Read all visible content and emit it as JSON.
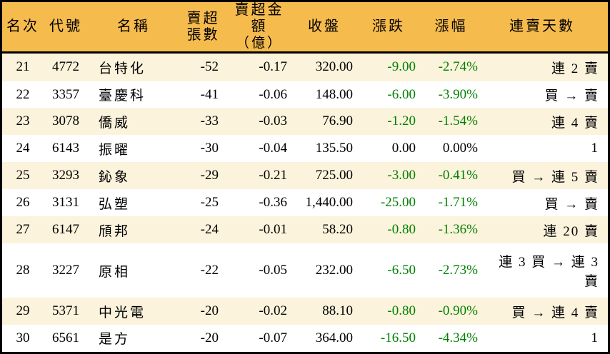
{
  "colors": {
    "header_bg": "#F6BB4D",
    "row_alt_bg": "#FCF3DC",
    "down_green": "#008000",
    "text": "#000000",
    "border": "#000000"
  },
  "chart_data": {
    "type": "table",
    "title": "",
    "columns": [
      {
        "label": "名次"
      },
      {
        "label": "代號"
      },
      {
        "label": "名稱"
      },
      {
        "label": "賣超張數"
      },
      {
        "label": "賣超金額",
        "label2": "（億）"
      },
      {
        "label": "收盤"
      },
      {
        "label": "漲跌"
      },
      {
        "label": "漲幅"
      },
      {
        "label": "連賣天數"
      }
    ],
    "rows": [
      {
        "rank": "21",
        "code": "4772",
        "name": "台特化",
        "sell_volume": "-52",
        "sell_amount": "-0.17",
        "close": "320.00",
        "change": "-9.00",
        "change_pct": "-2.74%",
        "streak": "連 2 賣",
        "change_color": "green"
      },
      {
        "rank": "22",
        "code": "3357",
        "name": "臺慶科",
        "sell_volume": "-41",
        "sell_amount": "-0.06",
        "close": "148.00",
        "change": "-6.00",
        "change_pct": "-3.90%",
        "streak": "買 → 賣",
        "change_color": "green"
      },
      {
        "rank": "23",
        "code": "3078",
        "name": "僑威",
        "sell_volume": "-33",
        "sell_amount": "-0.03",
        "close": "76.90",
        "change": "-1.20",
        "change_pct": "-1.54%",
        "streak": "連 4 賣",
        "change_color": "green"
      },
      {
        "rank": "24",
        "code": "6143",
        "name": "振曜",
        "sell_volume": "-30",
        "sell_amount": "-0.04",
        "close": "135.50",
        "change": "0.00",
        "change_pct": "0.00%",
        "streak": "1",
        "change_color": "black"
      },
      {
        "rank": "25",
        "code": "3293",
        "name": "鈊象",
        "sell_volume": "-29",
        "sell_amount": "-0.21",
        "close": "725.00",
        "change": "-3.00",
        "change_pct": "-0.41%",
        "streak": "買 → 連 5 賣",
        "change_color": "green"
      },
      {
        "rank": "26",
        "code": "3131",
        "name": "弘塑",
        "sell_volume": "-25",
        "sell_amount": "-0.36",
        "close": "1,440.00",
        "change": "-25.00",
        "change_pct": "-1.71%",
        "streak": "買 → 賣",
        "change_color": "green"
      },
      {
        "rank": "27",
        "code": "6147",
        "name": "頎邦",
        "sell_volume": "-24",
        "sell_amount": "-0.01",
        "close": "58.20",
        "change": "-0.80",
        "change_pct": "-1.36%",
        "streak": "連 20 賣",
        "change_color": "green"
      },
      {
        "rank": "28",
        "code": "3227",
        "name": "原相",
        "sell_volume": "-22",
        "sell_amount": "-0.05",
        "close": "232.00",
        "change": "-6.50",
        "change_pct": "-2.73%",
        "streak": "連 3 買 → 連 3 賣",
        "change_color": "green"
      },
      {
        "rank": "29",
        "code": "5371",
        "name": "中光電",
        "sell_volume": "-20",
        "sell_amount": "-0.02",
        "close": "88.10",
        "change": "-0.80",
        "change_pct": "-0.90%",
        "streak": "買 → 連 4 賣",
        "change_color": "green"
      },
      {
        "rank": "30",
        "code": "6561",
        "name": "是方",
        "sell_volume": "-20",
        "sell_amount": "-0.07",
        "close": "364.00",
        "change": "-16.50",
        "change_pct": "-4.34%",
        "streak": "1",
        "change_color": "green"
      }
    ]
  }
}
